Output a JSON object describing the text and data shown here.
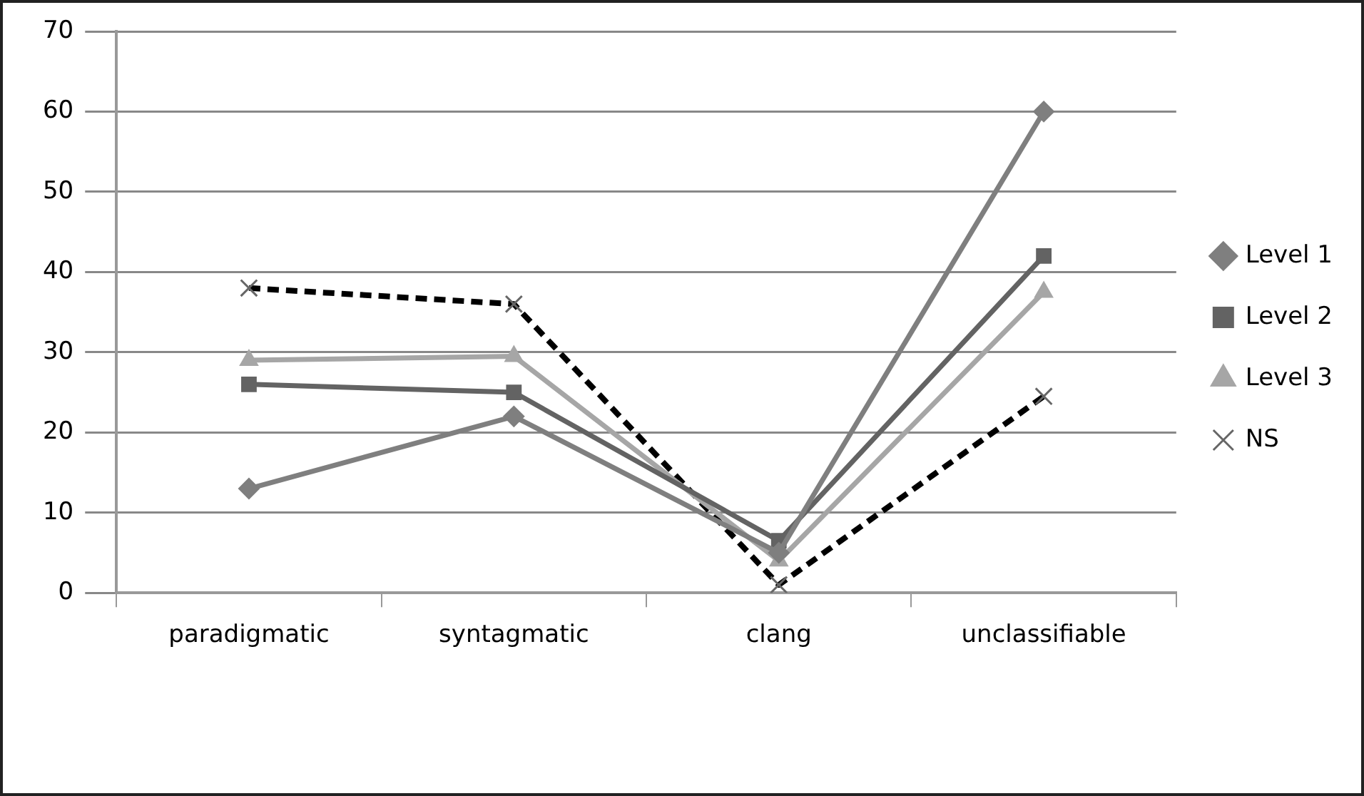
{
  "chart_data": {
    "type": "line",
    "categories": [
      "paradigmatic",
      "syntagmatic",
      "clang",
      "unclassifiable"
    ],
    "series": [
      {
        "name": "Level 1",
        "color": "#7f7f7f",
        "marker": "diamond",
        "values": [
          13,
          22,
          5,
          60
        ]
      },
      {
        "name": "Level 2",
        "color": "#636363",
        "marker": "square",
        "values": [
          26,
          25,
          6.5,
          42
        ]
      },
      {
        "name": "Level 3",
        "color": "#a6a6a6",
        "marker": "triangle",
        "values": [
          29,
          29.5,
          4,
          37.5
        ]
      },
      {
        "name": "NS",
        "color": "#000000",
        "marker": "cross",
        "line_style": "dashed",
        "values": [
          38,
          36,
          1,
          24.5
        ]
      }
    ],
    "ylim": [
      0,
      70
    ],
    "yticks": [
      0,
      10,
      20,
      30,
      40,
      50,
      60,
      70
    ],
    "grid": "y",
    "legend": "right"
  }
}
